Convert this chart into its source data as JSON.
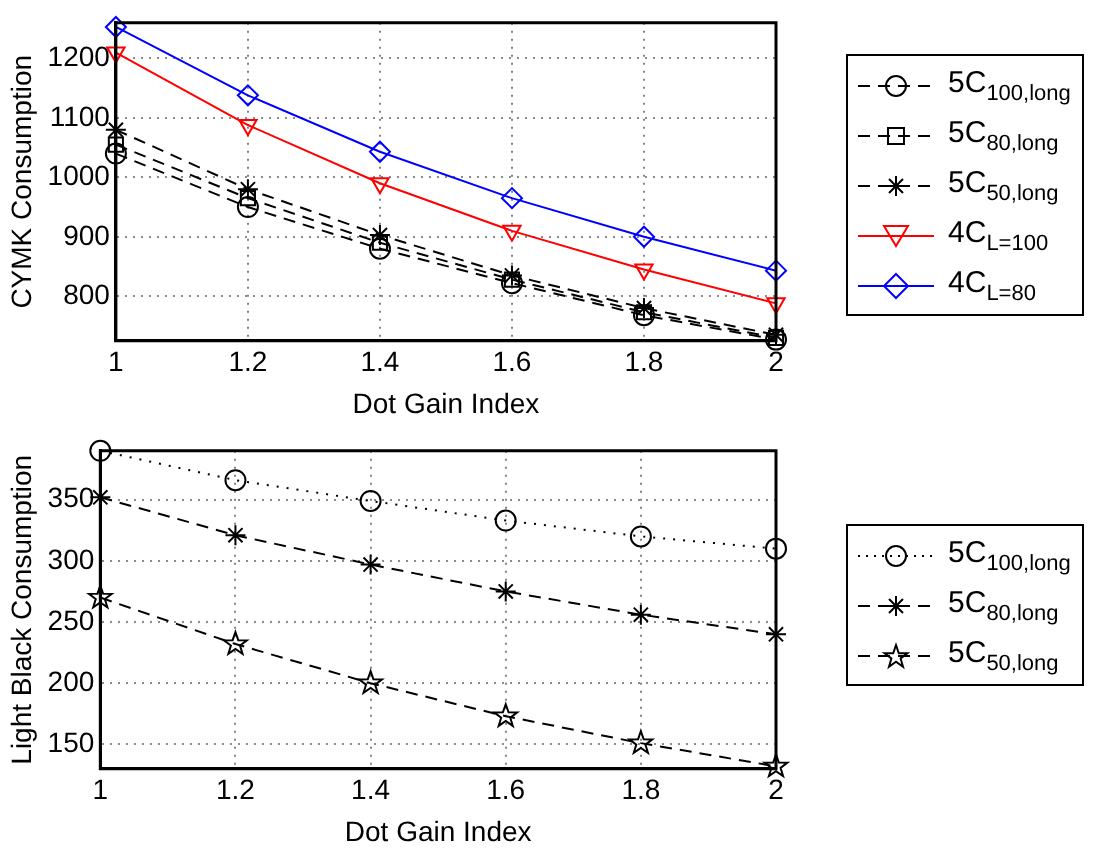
{
  "chart_data": [
    {
      "type": "line",
      "xlabel": "Dot Gain Index",
      "ylabel": "CYMK Consumption",
      "x": [
        1,
        1.2,
        1.4,
        1.6,
        1.8,
        2
      ],
      "xlim": [
        1,
        2
      ],
      "xticks": [
        1,
        1.2,
        1.4,
        1.6,
        1.8,
        2
      ],
      "ylim": [
        725,
        1260
      ],
      "yticks": [
        800,
        900,
        1000,
        1100,
        1200
      ],
      "grid": true,
      "legend": "right",
      "series": [
        {
          "name": "5C$_{100,long}$",
          "color": "#000000",
          "marker": "circle",
          "line_style": "dashed",
          "values": [
            1040,
            950,
            880,
            822,
            768,
            727
          ]
        },
        {
          "name": "5C$_{80,long}$",
          "color": "#000000",
          "marker": "square",
          "line_style": "dashed",
          "values": [
            1055,
            965,
            890,
            828,
            773,
            730
          ]
        },
        {
          "name": "5C$_{50,long}$",
          "color": "#000000",
          "marker": "cross",
          "line_style": "dashed",
          "values": [
            1080,
            980,
            903,
            835,
            780,
            735
          ]
        },
        {
          "name": "4C$_{L=100}$",
          "color": "#ff0000",
          "marker": "triangle",
          "line_style": "solid",
          "values": [
            1210,
            1088,
            990,
            910,
            845,
            788
          ]
        },
        {
          "name": "4C$_{L=80}$",
          "color": "#0000ff",
          "marker": "diamond",
          "line_style": "solid",
          "values": [
            1253,
            1138,
            1043,
            965,
            900,
            843
          ]
        }
      ]
    },
    {
      "type": "line",
      "xlabel": "Dot Gain Index",
      "ylabel": "Light Black Consumption",
      "x": [
        1,
        1.2,
        1.4,
        1.6,
        1.8,
        2
      ],
      "xlim": [
        1,
        2
      ],
      "xticks": [
        1,
        1.2,
        1.4,
        1.6,
        1.8,
        2
      ],
      "ylim": [
        130,
        390
      ],
      "yticks": [
        150,
        200,
        250,
        300,
        350
      ],
      "grid": true,
      "legend": "right",
      "series": [
        {
          "name": "5C$_{100,long}$",
          "color": "#000000",
          "marker": "circle",
          "line_style": "dotted",
          "values": [
            390,
            366,
            349,
            333,
            320,
            310
          ]
        },
        {
          "name": "5C$_{80,long}$",
          "color": "#000000",
          "marker": "cross",
          "line_style": "dashed",
          "values": [
            352,
            321,
            297,
            275,
            256,
            240
          ]
        },
        {
          "name": "5C$_{50,long}$",
          "color": "#000000",
          "marker": "star",
          "line_style": "dashed",
          "values": [
            270,
            232,
            200,
            173,
            151,
            132
          ]
        }
      ]
    }
  ]
}
